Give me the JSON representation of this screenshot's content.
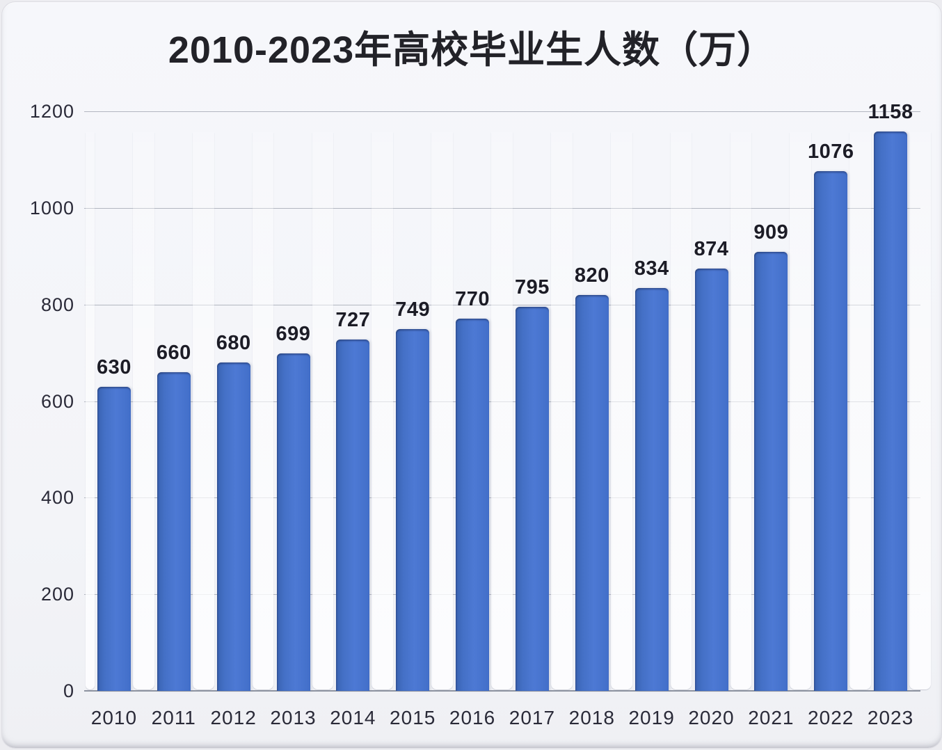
{
  "chart_data": {
    "type": "bar",
    "title": "2010-2023年高校毕业生人数（万）",
    "categories": [
      "2010",
      "2011",
      "2012",
      "2013",
      "2014",
      "2015",
      "2016",
      "2017",
      "2018",
      "2019",
      "2020",
      "2021",
      "2022",
      "2023"
    ],
    "values": [
      630,
      660,
      680,
      699,
      727,
      749,
      770,
      795,
      820,
      834,
      874,
      909,
      1076,
      1158
    ],
    "xlabel": "",
    "ylabel": "",
    "ylim": [
      0,
      1200
    ],
    "yticks": [
      0,
      200,
      400,
      600,
      800,
      1000,
      1200
    ],
    "grid": true,
    "legend_position": "none",
    "bar_value_labels_shown": true
  },
  "colors": {
    "bar": "#426fc9",
    "bar_edge": "#3a63b2",
    "grid": "#9ba0ac",
    "baseline": "#8d93a0",
    "title": "#222228",
    "axis_text": "#2a2a38",
    "value_label": "#1c1c26",
    "card_background": "#f4f5f9"
  }
}
